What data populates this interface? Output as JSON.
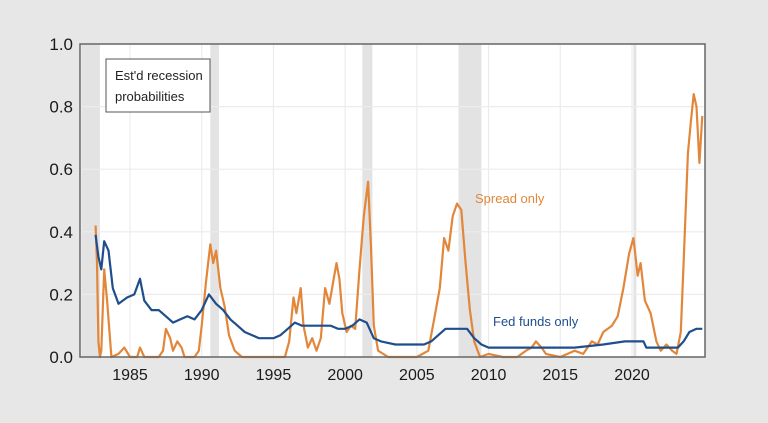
{
  "chart_data": {
    "type": "line",
    "title": "",
    "annotation_box": [
      "Est'd recession",
      "probabilities"
    ],
    "xlabel": "",
    "ylabel": "",
    "xlim": [
      1981.5,
      2025.1
    ],
    "ylim": [
      0.0,
      1.0
    ],
    "yticks": [
      "0.0",
      "0.2",
      "0.4",
      "0.6",
      "0.8",
      "1.0"
    ],
    "xticks": [
      "1985",
      "1990",
      "1995",
      "2000",
      "2005",
      "2010",
      "2015",
      "2020"
    ],
    "grid": true,
    "recession_shading": [
      [
        1981.6,
        1982.9
      ],
      [
        1990.6,
        1991.2
      ],
      [
        2001.2,
        2001.9
      ],
      [
        2007.9,
        2009.5
      ],
      [
        2020.1,
        2020.3
      ]
    ],
    "series": [
      {
        "name": "Spread only",
        "color": "#e2873a",
        "label_pos": [
          2008.9,
          0.49
        ],
        "points": [
          [
            1982.6,
            0.42
          ],
          [
            1982.7,
            0.3
          ],
          [
            1982.8,
            0.05
          ],
          [
            1982.9,
            0.0
          ],
          [
            1983.0,
            0.02
          ],
          [
            1983.2,
            0.28
          ],
          [
            1983.4,
            0.18
          ],
          [
            1983.7,
            0.0
          ],
          [
            1984.2,
            0.01
          ],
          [
            1984.6,
            0.03
          ],
          [
            1985.0,
            0.0
          ],
          [
            1985.5,
            0.0
          ],
          [
            1985.7,
            0.03
          ],
          [
            1986.0,
            0.0
          ],
          [
            1986.5,
            0.0
          ],
          [
            1987.0,
            0.0
          ],
          [
            1987.3,
            0.02
          ],
          [
            1987.5,
            0.09
          ],
          [
            1987.8,
            0.06
          ],
          [
            1988.0,
            0.02
          ],
          [
            1988.3,
            0.05
          ],
          [
            1988.6,
            0.03
          ],
          [
            1988.8,
            0.0
          ],
          [
            1989.5,
            0.0
          ],
          [
            1989.8,
            0.02
          ],
          [
            1990.0,
            0.1
          ],
          [
            1990.3,
            0.24
          ],
          [
            1990.6,
            0.36
          ],
          [
            1990.8,
            0.3
          ],
          [
            1991.0,
            0.34
          ],
          [
            1991.3,
            0.22
          ],
          [
            1991.6,
            0.16
          ],
          [
            1991.9,
            0.07
          ],
          [
            1992.3,
            0.02
          ],
          [
            1992.8,
            0.0
          ],
          [
            1994.0,
            0.0
          ],
          [
            1995.0,
            0.0
          ],
          [
            1995.8,
            0.0
          ],
          [
            1996.1,
            0.05
          ],
          [
            1996.4,
            0.19
          ],
          [
            1996.6,
            0.14
          ],
          [
            1996.9,
            0.22
          ],
          [
            1997.1,
            0.1
          ],
          [
            1997.4,
            0.03
          ],
          [
            1997.7,
            0.06
          ],
          [
            1998.0,
            0.02
          ],
          [
            1998.3,
            0.06
          ],
          [
            1998.6,
            0.22
          ],
          [
            1998.9,
            0.17
          ],
          [
            1999.2,
            0.25
          ],
          [
            1999.4,
            0.3
          ],
          [
            1999.6,
            0.25
          ],
          [
            1999.8,
            0.14
          ],
          [
            2000.1,
            0.08
          ],
          [
            2000.4,
            0.1
          ],
          [
            2000.7,
            0.09
          ],
          [
            2001.0,
            0.28
          ],
          [
            2001.3,
            0.45
          ],
          [
            2001.6,
            0.56
          ],
          [
            2001.8,
            0.35
          ],
          [
            2002.0,
            0.1
          ],
          [
            2002.3,
            0.02
          ],
          [
            2003.0,
            0.0
          ],
          [
            2004.0,
            0.0
          ],
          [
            2005.0,
            0.0
          ],
          [
            2005.8,
            0.02
          ],
          [
            2006.2,
            0.12
          ],
          [
            2006.6,
            0.22
          ],
          [
            2006.9,
            0.38
          ],
          [
            2007.2,
            0.34
          ],
          [
            2007.5,
            0.45
          ],
          [
            2007.8,
            0.49
          ],
          [
            2008.1,
            0.47
          ],
          [
            2008.4,
            0.3
          ],
          [
            2008.7,
            0.15
          ],
          [
            2009.0,
            0.05
          ],
          [
            2009.4,
            0.0
          ],
          [
            2010.0,
            0.01
          ],
          [
            2011.0,
            0.0
          ],
          [
            2012.0,
            0.0
          ],
          [
            2012.6,
            0.02
          ],
          [
            2013.0,
            0.03
          ],
          [
            2013.3,
            0.05
          ],
          [
            2013.7,
            0.03
          ],
          [
            2014.0,
            0.01
          ],
          [
            2015.0,
            0.0
          ],
          [
            2016.0,
            0.02
          ],
          [
            2016.6,
            0.01
          ],
          [
            2017.2,
            0.05
          ],
          [
            2017.6,
            0.04
          ],
          [
            2018.0,
            0.08
          ],
          [
            2018.6,
            0.1
          ],
          [
            2019.0,
            0.13
          ],
          [
            2019.4,
            0.22
          ],
          [
            2019.8,
            0.33
          ],
          [
            2020.1,
            0.38
          ],
          [
            2020.4,
            0.26
          ],
          [
            2020.6,
            0.3
          ],
          [
            2020.9,
            0.18
          ],
          [
            2021.3,
            0.14
          ],
          [
            2021.7,
            0.05
          ],
          [
            2022.0,
            0.02
          ],
          [
            2022.4,
            0.04
          ],
          [
            2022.8,
            0.02
          ],
          [
            2023.1,
            0.01
          ],
          [
            2023.4,
            0.08
          ],
          [
            2023.6,
            0.3
          ],
          [
            2023.9,
            0.65
          ],
          [
            2024.1,
            0.75
          ],
          [
            2024.3,
            0.84
          ],
          [
            2024.5,
            0.8
          ],
          [
            2024.7,
            0.62
          ],
          [
            2024.9,
            0.77
          ]
        ]
      },
      {
        "name": "Fed funds only",
        "color": "#1f4e8c",
        "label_pos": [
          2008.3,
          0.11
        ],
        "points": [
          [
            1982.6,
            0.39
          ],
          [
            1982.8,
            0.32
          ],
          [
            1983.0,
            0.28
          ],
          [
            1983.2,
            0.37
          ],
          [
            1983.5,
            0.34
          ],
          [
            1983.8,
            0.22
          ],
          [
            1984.2,
            0.17
          ],
          [
            1984.8,
            0.19
          ],
          [
            1985.3,
            0.2
          ],
          [
            1985.7,
            0.25
          ],
          [
            1986.0,
            0.18
          ],
          [
            1986.5,
            0.15
          ],
          [
            1987.0,
            0.15
          ],
          [
            1987.5,
            0.13
          ],
          [
            1988.0,
            0.11
          ],
          [
            1988.5,
            0.12
          ],
          [
            1989.0,
            0.13
          ],
          [
            1989.5,
            0.12
          ],
          [
            1990.0,
            0.15
          ],
          [
            1990.5,
            0.2
          ],
          [
            1991.0,
            0.17
          ],
          [
            1991.5,
            0.15
          ],
          [
            1992.0,
            0.12
          ],
          [
            1992.5,
            0.1
          ],
          [
            1993.0,
            0.08
          ],
          [
            1993.5,
            0.07
          ],
          [
            1994.0,
            0.06
          ],
          [
            1995.0,
            0.06
          ],
          [
            1995.5,
            0.07
          ],
          [
            1996.0,
            0.09
          ],
          [
            1996.5,
            0.11
          ],
          [
            1997.0,
            0.1
          ],
          [
            1998.0,
            0.1
          ],
          [
            1999.0,
            0.1
          ],
          [
            1999.5,
            0.09
          ],
          [
            2000.0,
            0.09
          ],
          [
            2000.5,
            0.1
          ],
          [
            2001.0,
            0.12
          ],
          [
            2001.5,
            0.11
          ],
          [
            2002.0,
            0.06
          ],
          [
            2002.5,
            0.05
          ],
          [
            2003.5,
            0.04
          ],
          [
            2004.5,
            0.04
          ],
          [
            2005.5,
            0.04
          ],
          [
            2006.0,
            0.05
          ],
          [
            2006.5,
            0.07
          ],
          [
            2007.0,
            0.09
          ],
          [
            2008.0,
            0.09
          ],
          [
            2008.5,
            0.09
          ],
          [
            2009.0,
            0.06
          ],
          [
            2009.5,
            0.04
          ],
          [
            2010.0,
            0.03
          ],
          [
            2012.0,
            0.03
          ],
          [
            2014.0,
            0.03
          ],
          [
            2016.0,
            0.03
          ],
          [
            2018.0,
            0.04
          ],
          [
            2019.5,
            0.05
          ],
          [
            2020.2,
            0.05
          ],
          [
            2020.8,
            0.05
          ],
          [
            2021.0,
            0.03
          ],
          [
            2022.0,
            0.03
          ],
          [
            2023.2,
            0.03
          ],
          [
            2023.6,
            0.05
          ],
          [
            2024.0,
            0.08
          ],
          [
            2024.5,
            0.09
          ],
          [
            2024.9,
            0.09
          ]
        ]
      }
    ]
  }
}
